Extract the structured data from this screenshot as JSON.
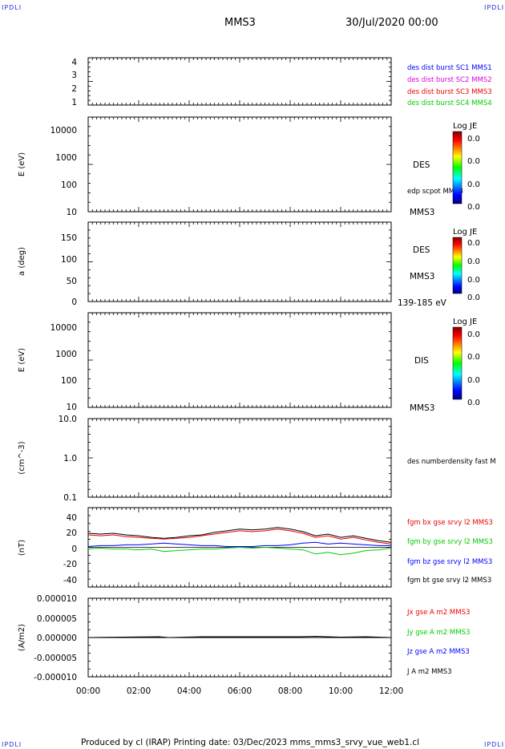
{
  "corners": {
    "top_left": "IPDLI",
    "top_right": "IPDLI",
    "bottom_left": "IPDLI",
    "bottom_right": "IPDLI"
  },
  "header": {
    "spacecraft": "MMS3",
    "date": "30/Jul/2020 00:00"
  },
  "footer": {
    "text": "Produced by cl (IRAP)   Printing date: 03/Dec/2023   mms_mms3_srvy_vue_web1.cl"
  },
  "x_axis": {
    "ticks": [
      "00:00",
      "02:00",
      "04:00",
      "06:00",
      "08:00",
      "10:00",
      "12:00"
    ]
  },
  "colors": {
    "sc1": "#0000ff",
    "sc2": "#dd00dd",
    "sc3": "#ee0000",
    "sc4": "#00cc00",
    "bt": "#000000"
  },
  "panels": {
    "p1": {
      "yticks": [
        "4",
        "3",
        "2",
        "1"
      ],
      "legend": [
        "des dist burst SC1 MMS1",
        "des dist burst SC2 MMS2",
        "des dist burst SC3 MMS3",
        "des dist burst SC4 MMS4"
      ]
    },
    "p2": {
      "ylabel": "E (eV)",
      "yticks": [
        "10000",
        "1000",
        "100",
        "10"
      ],
      "side_label": "DES",
      "side_note": "edp scpot MMS3",
      "side_bottom": "MMS3",
      "colorbar": {
        "title": "Log JE",
        "values": [
          "0.0",
          "0.0",
          "0.0",
          "0.0"
        ]
      }
    },
    "p3": {
      "ylabel": "a (deg)",
      "yticks": [
        "150",
        "100",
        "50",
        "0"
      ],
      "side_label": "DES",
      "side_mid": "MMS3",
      "side_bottom": "139-185 eV",
      "colorbar": {
        "title": "Log JE",
        "values": [
          "0.0",
          "0.0",
          "0.0",
          "0.0"
        ]
      }
    },
    "p4": {
      "ylabel": "E (eV)",
      "yticks": [
        "10000",
        "1000",
        "100",
        "10"
      ],
      "side_label": "DIS",
      "side_bottom": "MMS3",
      "colorbar": {
        "title": "Log JE",
        "values": [
          "0.0",
          "0.0",
          "0.0",
          "0.0"
        ]
      }
    },
    "p5": {
      "ylabel": "(cm^-3)",
      "yticks": [
        "10.0",
        "1.0",
        "0.1"
      ],
      "legend": [
        "des numberdensity fast M"
      ]
    },
    "p6": {
      "ylabel": "(nT)",
      "yticks": [
        "40",
        "20",
        "0",
        "-20",
        "-40"
      ],
      "legend": [
        "fgm bx gse srvy l2 MMS3",
        "fgm by gse srvy l2 MMS3",
        "fgm bz gse srvy l2 MMS3",
        "fgm bt gse srvy l2 MMS3"
      ]
    },
    "p7": {
      "ylabel": "(A/m2)",
      "yticks": [
        "0.000010",
        "0.000005",
        "0.000000",
        "-0.000005",
        "-0.000010"
      ],
      "legend": [
        "Jx gse A m2 MMS3",
        "Jy gse A m2 MMS3",
        "Jz gse A m2 MMS3",
        "J A m2 MMS3"
      ]
    }
  },
  "chart_data": {
    "type": "line",
    "x_unit": "hours UT",
    "xlim": [
      0,
      12
    ],
    "magnetic_field": {
      "ylim": [
        -48,
        48
      ],
      "x": [
        0,
        0.5,
        1,
        1.5,
        2,
        2.5,
        3,
        3.5,
        4,
        4.5,
        5,
        5.5,
        6,
        6.5,
        7,
        7.5,
        8,
        8.5,
        9,
        9.5,
        10,
        10.5,
        11,
        11.5,
        12
      ],
      "series": [
        {
          "name": "fgm bt gse srvy l2 MMS3",
          "values": [
            17,
            16,
            17,
            15,
            14,
            12,
            11,
            12,
            14,
            15,
            18,
            20,
            22,
            21,
            22,
            24,
            22,
            19,
            14,
            16,
            12,
            14,
            11,
            8,
            6
          ]
        },
        {
          "name": "fgm bx gse srvy l2 MMS3",
          "values": [
            15,
            14,
            15,
            13,
            12,
            11,
            10,
            11,
            12,
            14,
            16,
            18,
            20,
            19,
            20,
            22,
            20,
            17,
            12,
            14,
            10,
            12,
            9,
            6,
            4
          ]
        },
        {
          "name": "fgm by gse srvy l2 MMS3",
          "values": [
            -2,
            -1,
            -2,
            -2,
            -3,
            -2,
            -5,
            -4,
            -3,
            -2,
            -2,
            -1,
            0,
            -1,
            0,
            -1,
            -2,
            -3,
            -8,
            -6,
            -9,
            -7,
            -4,
            -3,
            -1
          ]
        },
        {
          "name": "fgm bz gse srvy l2 MMS3",
          "values": [
            1,
            2,
            2,
            3,
            3,
            4,
            5,
            4,
            3,
            2,
            2,
            1,
            1,
            1,
            2,
            2,
            3,
            5,
            6,
            4,
            5,
            4,
            3,
            2,
            2
          ]
        }
      ]
    },
    "current_density": {
      "ylim": [
        -1e-05,
        1e-05
      ],
      "x": [
        0,
        2.8,
        3.2,
        4.5,
        8.4,
        9,
        10,
        11,
        12
      ],
      "series": [
        {
          "name": "J A m2 MMS3",
          "values": [
            0,
            2e-07,
            0,
            2e-07,
            2e-07,
            3e-07,
            1e-07,
            2e-07,
            0
          ]
        }
      ]
    }
  }
}
